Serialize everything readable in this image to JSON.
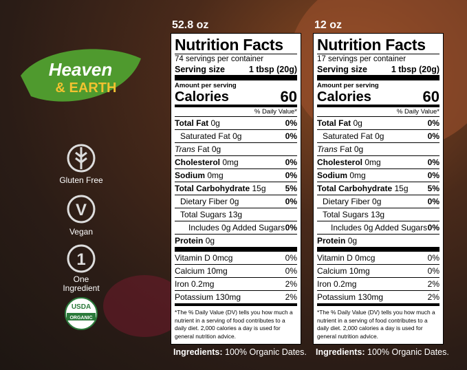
{
  "brand": {
    "name": "Heaven",
    "name_second": "& EARTH"
  },
  "badges": [
    {
      "label": "Gluten Free"
    },
    {
      "icon": "V",
      "label": "Vegan"
    },
    {
      "icon": "1",
      "label": "One Ingredient"
    },
    {
      "icon": "USDA",
      "label": "ORGANIC"
    }
  ],
  "panels": [
    {
      "size": "52.8 oz",
      "title": "Nutrition Facts",
      "servings": "74 servings per container",
      "serving_label": "Serving size",
      "serving_value": "1 tbsp (20g)",
      "amount_label": "Amount per serving",
      "calories_label": "Calories",
      "calories": "60",
      "dv_header": "% Daily Value*",
      "nutrients": [
        {
          "label": "Total Fat",
          "amount": "0g",
          "dv": "0%",
          "style": "bold"
        },
        {
          "label": "Saturated Fat",
          "amount": "0g",
          "dv": "0%",
          "style": "indent"
        },
        {
          "label": "Trans",
          "amount": "Fat 0g",
          "style": "italic"
        },
        {
          "label": "Cholesterol",
          "amount": "0mg",
          "dv": "0%",
          "style": "bold"
        },
        {
          "label": "Sodium",
          "amount": "0mg",
          "dv": "0%",
          "style": "bold"
        },
        {
          "label": "Total Carbohydrate",
          "amount": "15g",
          "dv": "5%",
          "style": "bold"
        },
        {
          "label": "Dietary Fiber",
          "amount": "0g",
          "dv": "0%",
          "style": "indent"
        },
        {
          "label": "Total Sugars",
          "amount": "13g",
          "style": "indent"
        },
        {
          "label": "Includes 0g Added Sugars",
          "dv": "0%",
          "style": "indent2"
        },
        {
          "label": "Protein",
          "amount": "0g",
          "style": "bold"
        }
      ],
      "vitamins": [
        {
          "label": "Vitamin D",
          "amount": "0mcg",
          "dv": "0%"
        },
        {
          "label": "Calcium",
          "amount": "10mg",
          "dv": "0%"
        },
        {
          "label": "Iron",
          "amount": "0.2mg",
          "dv": "2%"
        },
        {
          "label": "Potassium",
          "amount": "130mg",
          "dv": "2%"
        }
      ],
      "footnote": "*The % Daily Value (DV) tells you how much a nutrient in a serving of food contributes to a daily diet. 2,000 calories a day is used for general nutrition advice.",
      "ingredients_label": "Ingredients:",
      "ingredients": "100% Organic Dates."
    },
    {
      "size": "12 oz",
      "title": "Nutrition Facts",
      "servings": "17 servings per container",
      "serving_label": "Serving size",
      "serving_value": "1 tbsp (20g)",
      "amount_label": "Amount per serving",
      "calories_label": "Calories",
      "calories": "60",
      "dv_header": "% Daily Value*",
      "nutrients": [
        {
          "label": "Total Fat",
          "amount": "0g",
          "dv": "0%",
          "style": "bold"
        },
        {
          "label": "Saturated Fat",
          "amount": "0g",
          "dv": "0%",
          "style": "indent"
        },
        {
          "label": "Trans",
          "amount": "Fat 0g",
          "style": "italic"
        },
        {
          "label": "Cholesterol",
          "amount": "0mg",
          "dv": "0%",
          "style": "bold"
        },
        {
          "label": "Sodium",
          "amount": "0mg",
          "dv": "0%",
          "style": "bold"
        },
        {
          "label": "Total Carbohydrate",
          "amount": "15g",
          "dv": "5%",
          "style": "bold"
        },
        {
          "label": "Dietary Fiber",
          "amount": "0g",
          "dv": "0%",
          "style": "indent"
        },
        {
          "label": "Total Sugars",
          "amount": "13g",
          "style": "indent"
        },
        {
          "label": "Includes 0g Added Sugars",
          "dv": "0%",
          "style": "indent2"
        },
        {
          "label": "Protein",
          "amount": "0g",
          "style": "bold"
        }
      ],
      "vitamins": [
        {
          "label": "Vitamin D",
          "amount": "0mcg",
          "dv": "0%"
        },
        {
          "label": "Calcium",
          "amount": "10mg",
          "dv": "0%"
        },
        {
          "label": "Iron",
          "amount": "0.2mg",
          "dv": "2%"
        },
        {
          "label": "Potassium",
          "amount": "130mg",
          "dv": "2%"
        }
      ],
      "footnote": "*The % Daily Value (DV) tells you how much a nutrient in a serving of food contributes to a daily diet. 2,000 calories a day is used for general nutrition advice.",
      "ingredients_label": "Ingredients:",
      "ingredients": "100% Organic Dates."
    }
  ]
}
